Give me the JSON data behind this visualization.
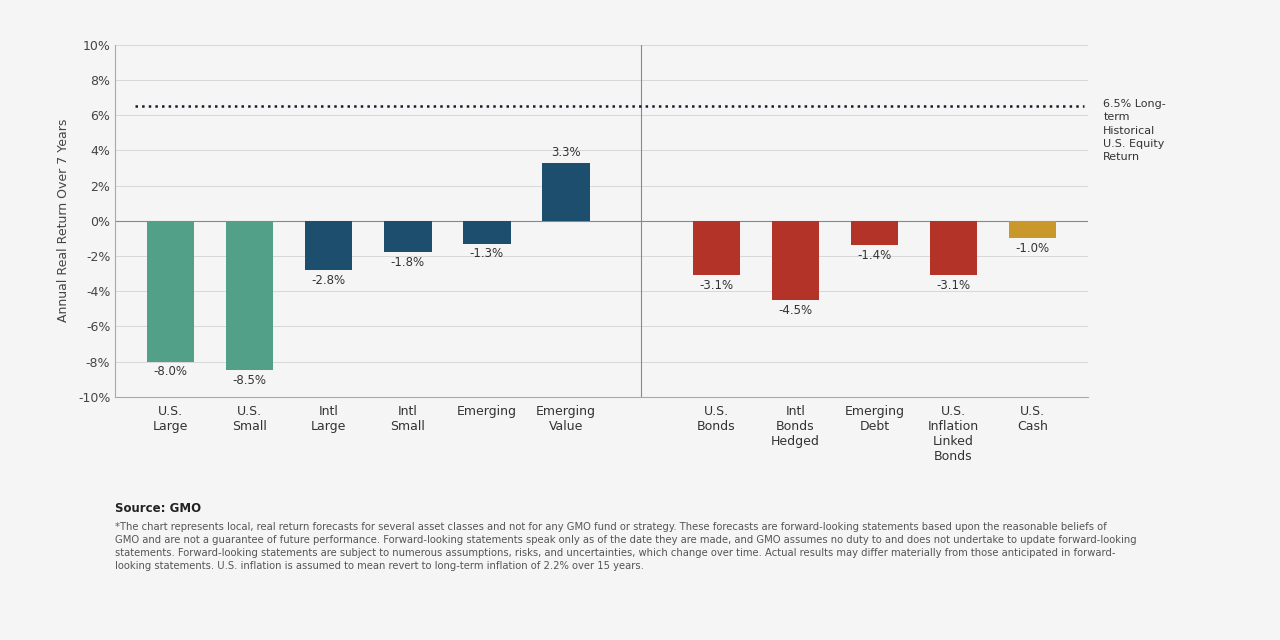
{
  "categories": [
    "U.S.\nLarge",
    "U.S.\nSmall",
    "Intl\nLarge",
    "Intl\nSmall",
    "Emerging",
    "Emerging\nValue",
    "U.S.\nBonds",
    "Intl\nBonds\nHedged",
    "Emerging\nDebt",
    "U.S.\nInflation\nLinked\nBonds",
    "U.S.\nCash"
  ],
  "values": [
    -8.0,
    -8.5,
    -2.8,
    -1.8,
    -1.3,
    3.3,
    -3.1,
    -4.5,
    -1.4,
    -3.1,
    -1.0
  ],
  "bar_colors": [
    "#52a087",
    "#52a087",
    "#1d4e6e",
    "#1d4e6e",
    "#1d4e6e",
    "#1d4e6e",
    "#b33328",
    "#b33328",
    "#b33328",
    "#b33328",
    "#c9982b"
  ],
  "reference_line_y": 6.5,
  "reference_line_color": "#1a1a2e",
  "reference_label": "6.5% Long-\nterm\nHistorical\nU.S. Equity\nReturn",
  "ylabel": "Annual Real Return Over 7 Years",
  "ylim": [
    -10,
    10
  ],
  "yticks": [
    -10,
    -8,
    -6,
    -4,
    -2,
    0,
    2,
    4,
    6,
    8,
    10
  ],
  "ytick_labels": [
    "-10%",
    "-8%",
    "-6%",
    "-4%",
    "-2%",
    "0%",
    "2%",
    "4%",
    "6%",
    "8%",
    "10%"
  ],
  "divider_after_index": 5,
  "background_color": "#f5f5f5",
  "plot_bg_color": "#f5f5f5",
  "bar_label_fontsize": 8.5,
  "axis_fontsize": 9,
  "source_text": "Source: GMO",
  "footnote_text": "*The chart represents local, real return forecasts for several asset classes and not for any GMO fund or strategy. These forecasts are forward-looking statements based upon the reasonable beliefs of\nGMO and are not a guarantee of future performance. Forward-looking statements speak only as of the date they are made, and GMO assumes no duty to and does not undertake to update forward-looking\nstatements. Forward-looking statements are subject to numerous assumptions, risks, and uncertainties, which change over time. Actual results may differ materially from those anticipated in forward-\nlooking statements. U.S. inflation is assumed to mean revert to long-term inflation of 2.2% over 15 years."
}
